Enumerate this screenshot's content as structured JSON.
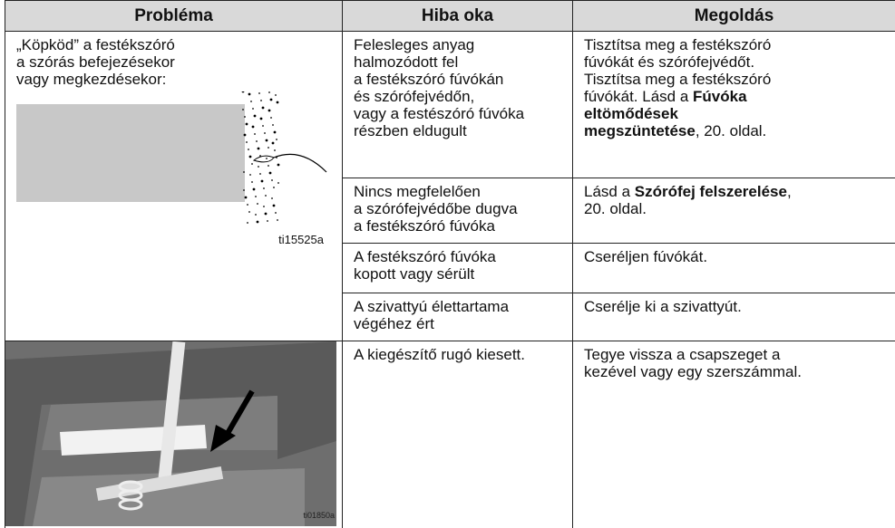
{
  "header": [
    "Probléma",
    "Hiba oka",
    "Megoldás"
  ],
  "problems": [
    {
      "text": "„Köpköd” a festékszóró\na szórás befejezésekor\nvagy megkezdésekor:",
      "image_label": "ti15525a",
      "causes": [
        {
          "cause": "Felesleges anyag\nhalmozódott fel\na festékszóró fúvókán\nés szórófejvédőn,\nvagy a festészóró fúvóka\nrészben eldugult",
          "solution": [
            {
              "text": "Tisztítsa meg a festékszóró\nfúvókát és szórófejvédőt.\nTisztítsa meg a festékszóró\nfúvókát. Lásd a "
            },
            {
              "text": "Fúvóka\neltömődések\nmegszüntetése",
              "bold": true
            },
            {
              "text": ", 20. oldal."
            }
          ]
        },
        {
          "cause": "Nincs megfelelően\na szórófejvédőbe dugva\na festékszóró fúvóka",
          "solution": [
            {
              "text": "Lásd a "
            },
            {
              "text": "Szórófej felszerelése",
              "bold": true
            },
            {
              "text": ",\n20. oldal."
            }
          ]
        },
        {
          "cause": "A festékszóró fúvóka\nkopott vagy sérült",
          "solution": [
            {
              "text": "Cseréljen fúvókát."
            }
          ]
        },
        {
          "cause": "A szivattyú élettartama\nvégéhez ért",
          "solution": [
            {
              "text": "Cserélje ki a szivattyút."
            }
          ]
        }
      ]
    },
    {
      "image_label": "ti01850a",
      "causes": [
        {
          "cause": "A kiegészítő rugó kiesett.",
          "solution": [
            {
              "text": "Tegye vissza a csapszeget a\nkezével vagy egy szerszámmal."
            }
          ]
        }
      ]
    }
  ]
}
